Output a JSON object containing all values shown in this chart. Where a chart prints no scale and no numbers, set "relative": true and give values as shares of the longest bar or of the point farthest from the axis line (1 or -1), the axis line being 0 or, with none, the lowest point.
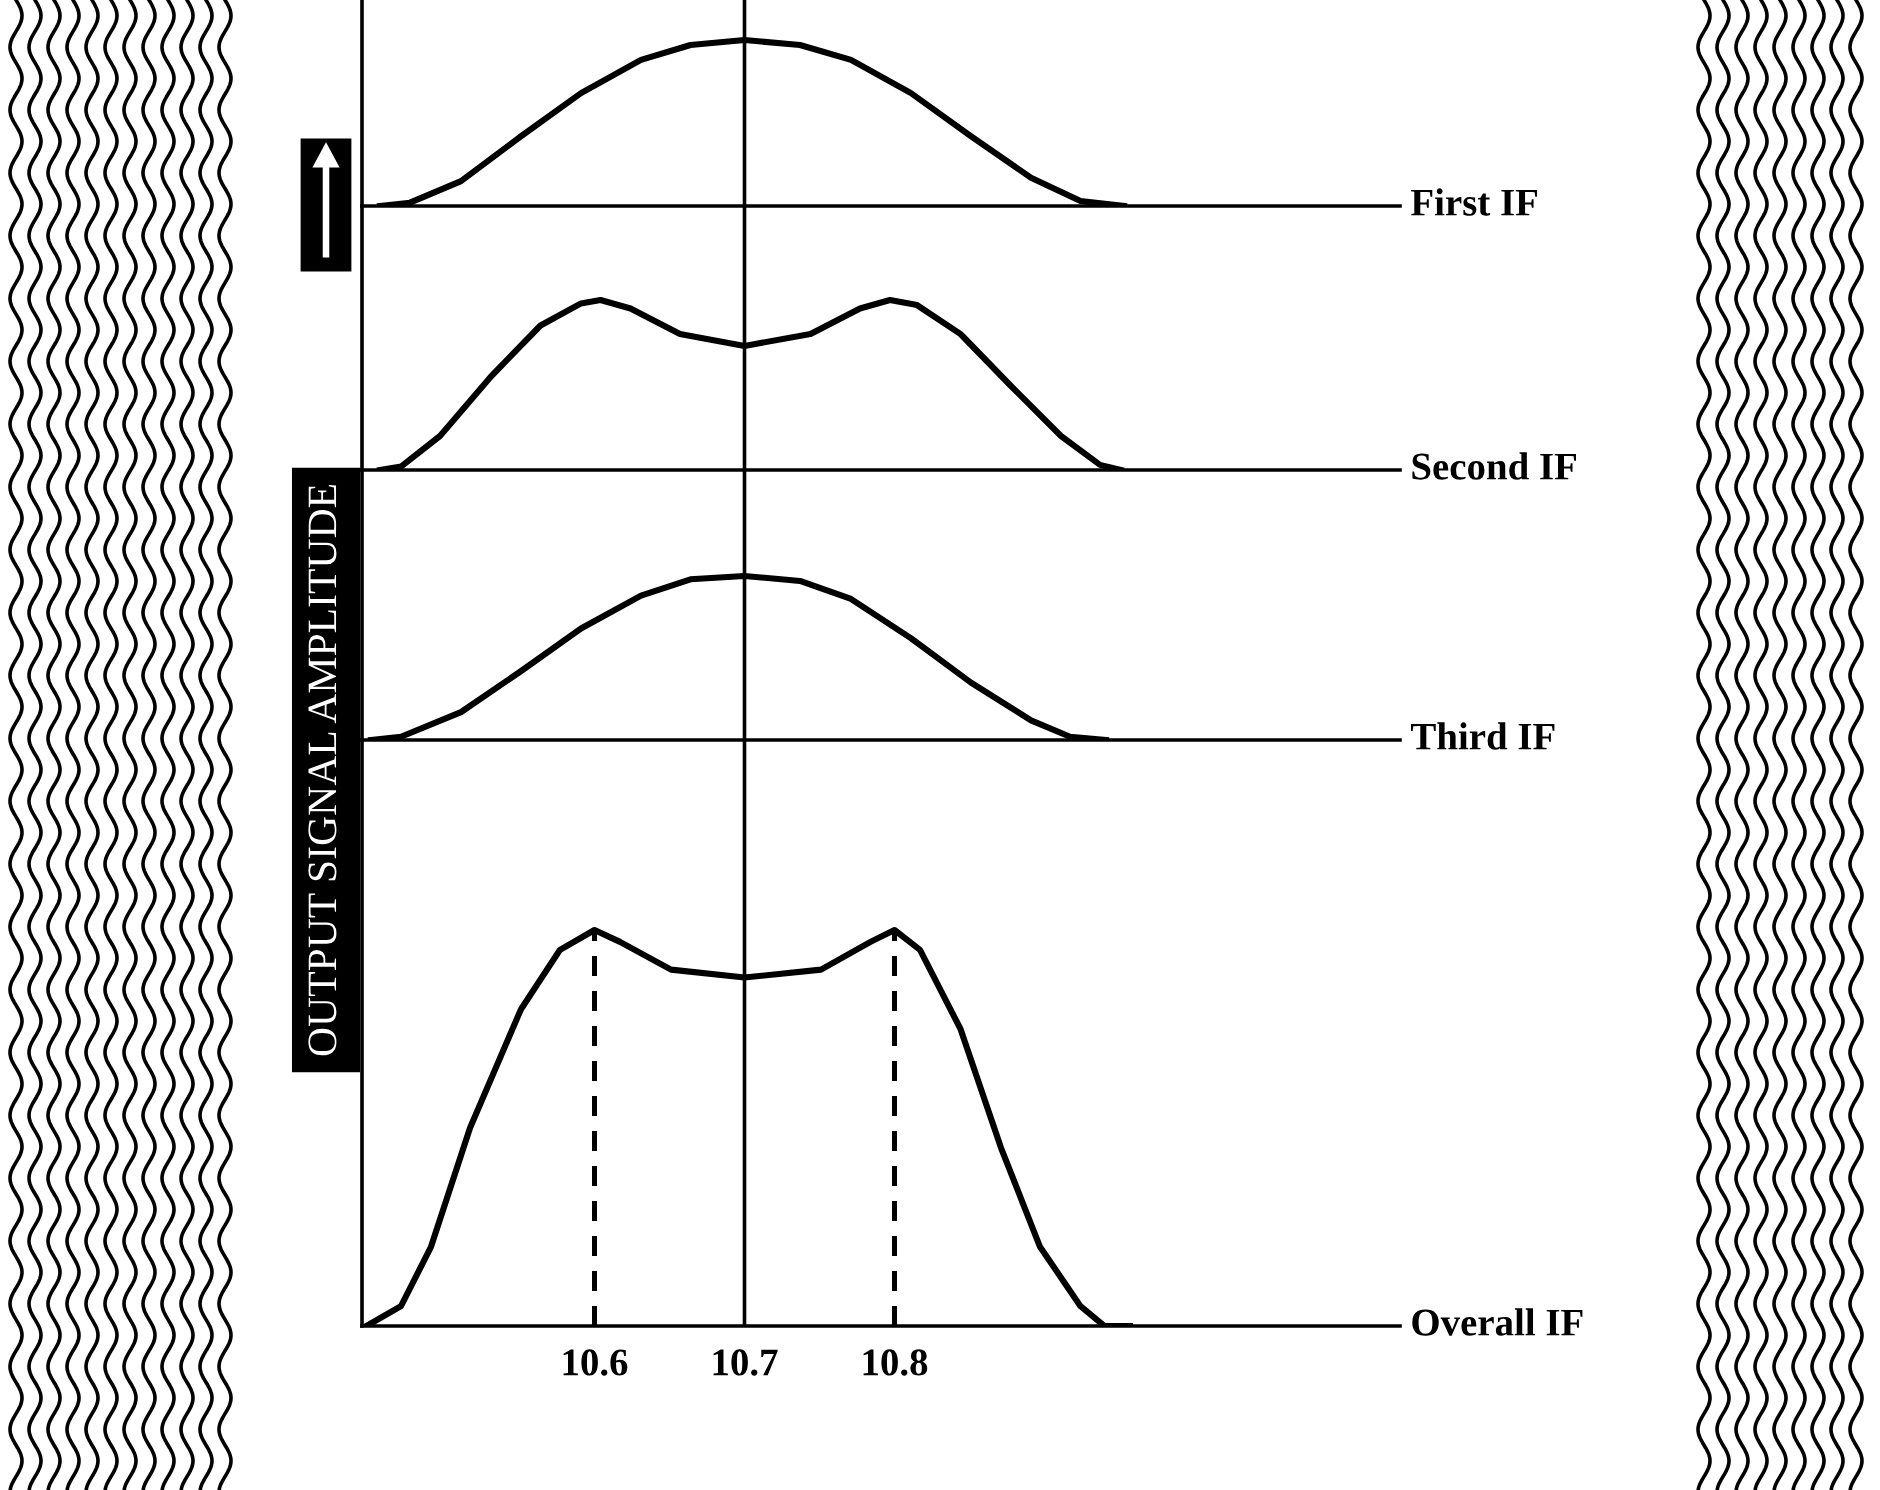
{
  "chart_data": [
    {
      "type": "line",
      "relative": true,
      "xlim": [
        10.445,
        11.137
      ],
      "tick_labels": false,
      "series": [
        {
          "name": "First IF",
          "color": "#000000",
          "x": [
            10.457,
            10.477,
            10.511,
            10.551,
            10.591,
            10.631,
            10.664,
            10.7,
            10.737,
            10.771,
            10.811,
            10.851,
            10.891,
            10.924,
            10.953
          ],
          "values": [
            0,
            0.02,
            0.15,
            0.42,
            0.68,
            0.88,
            0.97,
            1.0,
            0.97,
            0.88,
            0.68,
            0.42,
            0.17,
            0.03,
            0
          ]
        }
      ],
      "ref_lines": [
        {
          "axis": "x",
          "value": 10.7,
          "color": "#000000",
          "line_style": "solid"
        }
      ]
    },
    {
      "type": "line",
      "relative": true,
      "xlim": [
        10.445,
        11.137
      ],
      "tick_labels": false,
      "series": [
        {
          "name": "Second IF",
          "color": "#000000",
          "x": [
            10.457,
            10.471,
            10.497,
            10.531,
            10.564,
            10.591,
            10.604,
            10.624,
            10.657,
            10.7,
            10.744,
            10.777,
            10.797,
            10.815,
            10.844,
            10.877,
            10.911,
            10.937,
            10.951
          ],
          "values": [
            0,
            0.02,
            0.2,
            0.55,
            0.85,
            0.98,
            1.0,
            0.95,
            0.8,
            0.73,
            0.8,
            0.95,
            1.0,
            0.97,
            0.8,
            0.5,
            0.2,
            0.03,
            0
          ]
        }
      ],
      "ref_lines": [
        {
          "axis": "x",
          "value": 10.7,
          "color": "#000000",
          "line_style": "solid"
        }
      ]
    },
    {
      "type": "line",
      "relative": true,
      "xlim": [
        10.445,
        11.137
      ],
      "tick_labels": false,
      "series": [
        {
          "name": "Third IF",
          "color": "#000000",
          "x": [
            10.451,
            10.471,
            10.511,
            10.551,
            10.591,
            10.631,
            10.664,
            10.7,
            10.737,
            10.771,
            10.811,
            10.851,
            10.891,
            10.917,
            10.941
          ],
          "values": [
            0,
            0.02,
            0.17,
            0.42,
            0.68,
            0.88,
            0.98,
            1.0,
            0.97,
            0.86,
            0.62,
            0.35,
            0.12,
            0.02,
            0
          ]
        }
      ],
      "ref_lines": [
        {
          "axis": "x",
          "value": 10.7,
          "color": "#000000",
          "line_style": "solid"
        }
      ]
    },
    {
      "type": "line",
      "relative": true,
      "xlim": [
        10.445,
        11.137
      ],
      "xticks": [
        10.6,
        10.7,
        10.8
      ],
      "tick_labels": "x",
      "ylabel": "OUTPUT SIGNAL AMPLITUDE",
      "series": [
        {
          "name": "Overall IF",
          "color": "#000000",
          "x": [
            10.448,
            10.471,
            10.491,
            10.517,
            10.551,
            10.577,
            10.6,
            10.617,
            10.651,
            10.7,
            10.751,
            10.784,
            10.8,
            10.817,
            10.844,
            10.871,
            10.897,
            10.924,
            10.94,
            10.957
          ],
          "values": [
            0,
            0.05,
            0.2,
            0.5,
            0.8,
            0.95,
            1.0,
            0.97,
            0.9,
            0.88,
            0.9,
            0.97,
            1.0,
            0.95,
            0.75,
            0.45,
            0.2,
            0.05,
            0,
            0
          ]
        }
      ],
      "ref_lines": [
        {
          "axis": "x",
          "value": 10.6,
          "color": "#000000",
          "line_style": "dashed"
        },
        {
          "axis": "x",
          "value": 10.7,
          "color": "#000000",
          "line_style": "solid"
        },
        {
          "axis": "x",
          "value": 10.8,
          "color": "#000000",
          "line_style": "dashed"
        }
      ]
    }
  ]
}
